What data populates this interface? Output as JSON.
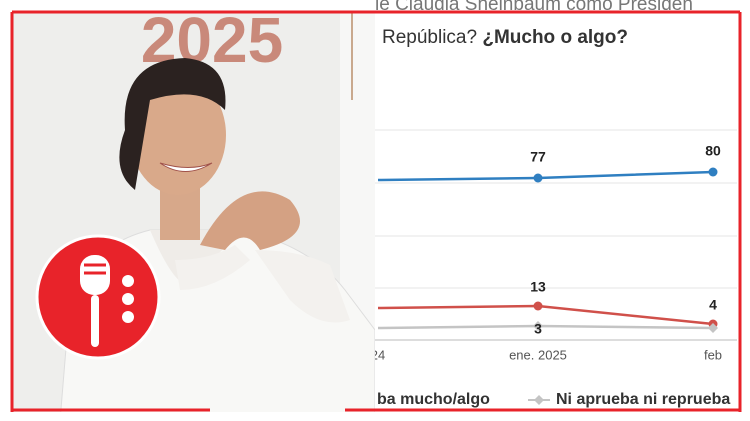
{
  "chart_data": {
    "type": "line",
    "top_text": "le Claudia Sheinbaum como Presiden",
    "title": [
      "República? ",
      "¿Mucho o algo?"
    ],
    "backdrop_text": "2025",
    "categories": [
      "24",
      "ene. 2025",
      "feb"
    ],
    "series": [
      {
        "name": "ba mucho/algo",
        "color": "#2f7fc1",
        "values": [
          76,
          77,
          80
        ],
        "value_labels": [
          null,
          "77",
          "80"
        ]
      },
      {
        "color": "#d0504a",
        "values": [
          12,
          13,
          4
        ],
        "value_labels": [
          null,
          "13",
          "4"
        ]
      },
      {
        "name": "Ni aprueba ni reprueba",
        "color": "#c4c4c4",
        "values": [
          2,
          3,
          2
        ],
        "value_labels": [
          null,
          "3",
          null
        ]
      }
    ],
    "ylim": [
      0,
      100
    ]
  }
}
